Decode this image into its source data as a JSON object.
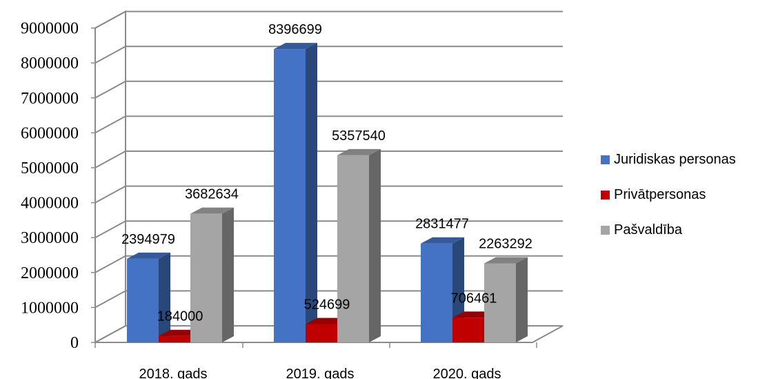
{
  "chart_data": {
    "type": "bar",
    "categories": [
      "2018. gads",
      "2019. gads",
      "2020. gads"
    ],
    "series": [
      {
        "name": "Juridiskas personas",
        "values": [
          2394979,
          8396699,
          2831477
        ],
        "color": "#4472C4"
      },
      {
        "name": "Privātpersonas",
        "values": [
          184000,
          524699,
          706461
        ],
        "color": "#C00000"
      },
      {
        "name": "Pašvaldība",
        "values": [
          3682634,
          5357540,
          2263292
        ],
        "color": "#A5A5A5"
      }
    ],
    "data_labels": [
      [
        "2394979",
        "184000",
        "3682634"
      ],
      [
        "8396699",
        "524699",
        "5357540"
      ],
      [
        "2831477",
        "706461",
        "2263292"
      ]
    ],
    "y_ticks": [
      "0",
      "1000000",
      "2000000",
      "3000000",
      "4000000",
      "5000000",
      "6000000",
      "7000000",
      "8000000",
      "9000000"
    ],
    "ylim": [
      0,
      9000000
    ],
    "grid": true,
    "three_d": true,
    "legend_position": "right"
  }
}
